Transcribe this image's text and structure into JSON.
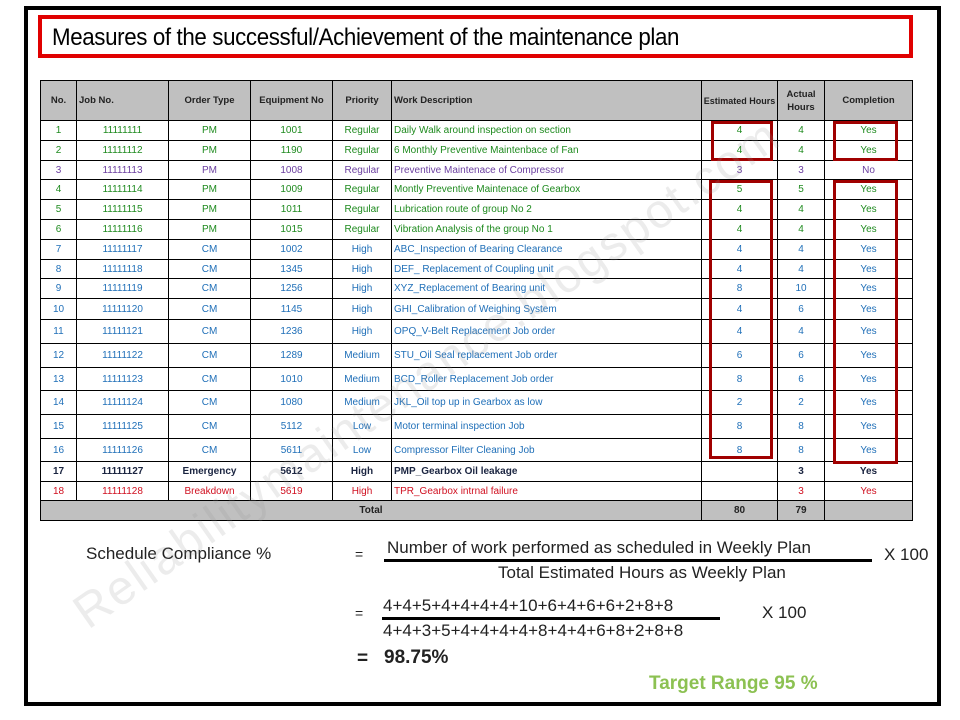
{
  "title": "Measures of the successful/Achievement of the maintenance plan",
  "colors": {
    "title_border": "#e00000",
    "highlight_border": "#a00000",
    "header_bg": "#c0c0c0",
    "pm_green": "#1e8a1e",
    "pm_purple": "#6b3fa0",
    "cm_blue": "#1f6fb8",
    "emergency_navy": "#1a2440",
    "breakdown_red": "#d01020",
    "target_green": "#8cc152"
  },
  "table": {
    "headers": {
      "no": "No.",
      "job_no": "Job No.",
      "order_type": "Order Type",
      "equipment_no": "Equipment No",
      "priority": "Priority",
      "work_description": "Work Description",
      "estimated_hours": "Estimated Hours",
      "actual_hours": "Actual Hours",
      "completion": "Completion"
    },
    "rows": [
      {
        "no": "1",
        "job_no": "11111111",
        "order_type": "PM",
        "equipment_no": "1001",
        "priority": "Regular",
        "work_description": "Daily Walk around inspection on section",
        "estimated_hours": "4",
        "actual_hours": "4",
        "completion": "Yes",
        "color": "#1e8a1e"
      },
      {
        "no": "2",
        "job_no": "11111112",
        "order_type": "PM",
        "equipment_no": "1190",
        "priority": "Regular",
        "work_description": "6 Monthly Preventive Maintenbace of Fan",
        "estimated_hours": "4",
        "actual_hours": "4",
        "completion": "Yes",
        "color": "#1e8a1e"
      },
      {
        "no": "3",
        "job_no": "11111113",
        "order_type": "PM",
        "equipment_no": "1008",
        "priority": "Regular",
        "work_description": "Preventive Maintenace of Compressor",
        "estimated_hours": "3",
        "actual_hours": "3",
        "completion": "No",
        "color": "#6b3fa0"
      },
      {
        "no": "4",
        "job_no": "11111114",
        "order_type": "PM",
        "equipment_no": "1009",
        "priority": "Regular",
        "work_description": "Montly Preventive Maintenace of Gearbox",
        "estimated_hours": "5",
        "actual_hours": "5",
        "completion": "Yes",
        "color": "#1e8a1e"
      },
      {
        "no": "5",
        "job_no": "11111115",
        "order_type": "PM",
        "equipment_no": "1011",
        "priority": "Regular",
        "work_description": "Lubrication route of  group No 2",
        "estimated_hours": "4",
        "actual_hours": "4",
        "completion": "Yes",
        "color": "#1e8a1e"
      },
      {
        "no": "6",
        "job_no": "11111116",
        "order_type": "PM",
        "equipment_no": "1015",
        "priority": "Regular",
        "work_description": "Vibration Analysis of the group No 1",
        "estimated_hours": "4",
        "actual_hours": "4",
        "completion": "Yes",
        "color": "#1e8a1e"
      },
      {
        "no": "7",
        "job_no": "11111117",
        "order_type": "CM",
        "equipment_no": "1002",
        "priority": "High",
        "work_description": "ABC_Inspection of Bearing Clearance",
        "estimated_hours": "4",
        "actual_hours": "4",
        "completion": "Yes",
        "color": "#1f6fb8"
      },
      {
        "no": "8",
        "job_no": "11111118",
        "order_type": "CM",
        "equipment_no": "1345",
        "priority": "High",
        "work_description": "DEF_ Replacement of Coupling unit",
        "estimated_hours": "4",
        "actual_hours": "4",
        "completion": "Yes",
        "color": "#1f6fb8"
      },
      {
        "no": "9",
        "job_no": "11111119",
        "order_type": "CM",
        "equipment_no": "1256",
        "priority": "High",
        "work_description": "XYZ_Replacement of Bearing unit",
        "estimated_hours": "8",
        "actual_hours": "10",
        "completion": "Yes",
        "color": "#1f6fb8"
      },
      {
        "no": "10",
        "job_no": "11111120",
        "order_type": "CM",
        "equipment_no": "1145",
        "priority": "High",
        "work_description": "GHI_Calibration of Weighing System",
        "estimated_hours": "4",
        "actual_hours": "6",
        "completion": "Yes",
        "color": "#1f6fb8"
      },
      {
        "no": "11",
        "job_no": "11111121",
        "order_type": "CM",
        "equipment_no": "1236",
        "priority": "High",
        "work_description": "OPQ_V-Belt Replacement Job order",
        "estimated_hours": "4",
        "actual_hours": "4",
        "completion": "Yes",
        "color": "#1f6fb8"
      },
      {
        "no": "12",
        "job_no": "11111122",
        "order_type": "CM",
        "equipment_no": "1289",
        "priority": "Medium",
        "work_description": "STU_Oil Seal replacement Job order",
        "estimated_hours": "6",
        "actual_hours": "6",
        "completion": "Yes",
        "color": "#1f6fb8"
      },
      {
        "no": "13",
        "job_no": "11111123",
        "order_type": "CM",
        "equipment_no": "1010",
        "priority": "Medium",
        "work_description": "BCD_Roller Replacement Job order",
        "estimated_hours": "8",
        "actual_hours": "6",
        "completion": "Yes",
        "color": "#1f6fb8"
      },
      {
        "no": "14",
        "job_no": "11111124",
        "order_type": "CM",
        "equipment_no": "1080",
        "priority": "Medium",
        "work_description": "JKL_Oil top up in Gearbox as low",
        "estimated_hours": "2",
        "actual_hours": "2",
        "completion": "Yes",
        "color": "#1f6fb8"
      },
      {
        "no": "15",
        "job_no": "11111125",
        "order_type": "CM",
        "equipment_no": "5112",
        "priority": "Low",
        "work_description": "Motor terminal inspection Job",
        "estimated_hours": "8",
        "actual_hours": "8",
        "completion": "Yes",
        "color": "#1f6fb8"
      },
      {
        "no": "16",
        "job_no": "11111126",
        "order_type": "CM",
        "equipment_no": "5611",
        "priority": "Low",
        "work_description": "Compressor Filter Cleaning Job",
        "estimated_hours": "8",
        "actual_hours": "8",
        "completion": "Yes",
        "color": "#1f6fb8"
      },
      {
        "no": "17",
        "job_no": "11111127",
        "order_type": "Emergency",
        "equipment_no": "5612",
        "priority": "High",
        "work_description": "PMP_Gearbox Oil leakage",
        "estimated_hours": "",
        "actual_hours": "3",
        "completion": "Yes",
        "color": "#1a2440"
      },
      {
        "no": "18",
        "job_no": "11111128",
        "order_type": "Breakdown",
        "equipment_no": "5619",
        "priority": "High",
        "work_description": "TPR_Gearbox intrnal failure",
        "estimated_hours": "",
        "actual_hours": "3",
        "completion": "Yes",
        "color": "#d01020"
      }
    ],
    "total": {
      "label": "Total",
      "estimated_hours": "80",
      "actual_hours": "79"
    }
  },
  "formula": {
    "label": "Schedule Compliance %",
    "equals": "=",
    "numerator_text": "Number of work performed  as scheduled  in Weekly Plan",
    "denominator_text": "Total Estimated Hours as Weekly Plan",
    "multiplier": "X 100",
    "numerator_values": "4+4+5+4+4+4+4+10+6+4+6+6+2+8+8",
    "denominator_values": "4+4+3+5+4+4+4+4+8+4+4+6+8+2+8+8",
    "result": "98.75%",
    "target": "Target Range 95 %"
  },
  "watermark": "Reliabilitymaintenance.blogspot.com"
}
